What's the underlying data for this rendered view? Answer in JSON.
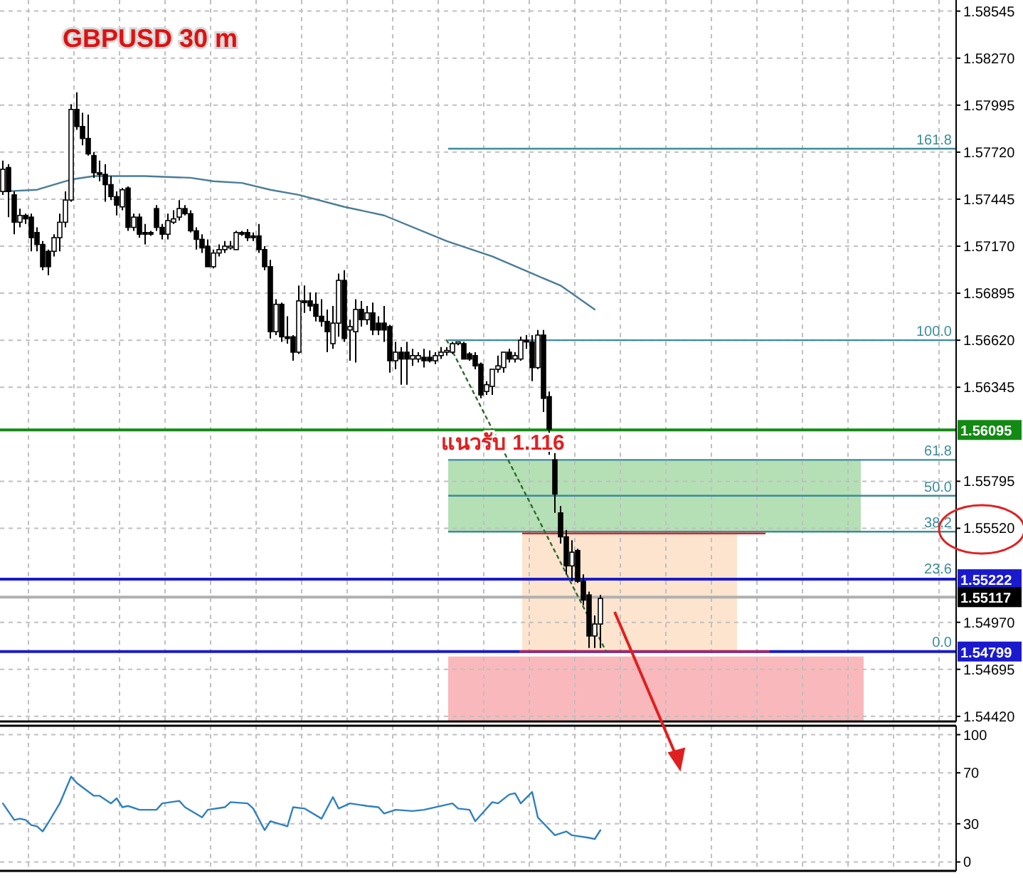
{
  "chart_data": [
    {
      "type": "candlestick",
      "title": "GBPUSD 30 m",
      "categories": [
        null,
        null,
        null,
        null,
        null,
        null,
        null,
        null,
        null,
        null,
        null,
        null,
        null,
        null,
        null,
        null,
        null,
        null,
        null,
        null,
        null,
        null,
        null,
        null,
        null,
        null,
        null,
        null,
        null,
        null,
        null,
        null,
        null,
        null,
        null,
        null,
        null,
        null,
        null,
        null,
        null,
        null,
        null,
        null,
        null,
        null,
        null,
        null,
        null,
        null,
        null,
        null,
        null,
        null,
        null,
        null,
        null,
        null,
        null,
        null,
        null,
        null,
        null,
        null,
        null,
        null,
        null,
        null,
        null,
        null,
        null,
        null,
        null,
        null,
        null,
        null,
        null,
        null,
        null,
        null,
        null,
        null,
        null,
        null,
        null,
        null,
        null,
        null,
        null,
        null,
        null,
        null,
        null,
        null,
        null,
        null,
        null,
        null,
        null,
        null,
        null,
        null,
        null,
        null,
        null,
        null,
        null,
        null,
        null,
        null,
        null,
        null,
        null,
        null,
        null,
        null,
        null,
        null,
        null,
        null,
        null,
        null,
        null,
        null,
        null,
        null,
        null,
        null,
        null,
        null,
        null,
        null,
        null,
        null,
        null,
        null,
        null,
        null,
        null,
        null,
        null,
        null,
        null,
        null,
        null,
        null,
        null,
        null,
        null,
        null,
        null,
        null,
        null,
        null,
        null,
        null,
        null,
        null,
        null,
        null,
        null,
        null,
        null,
        null,
        null,
        null,
        null,
        null
      ],
      "ohlc": [
        [
          1.5749,
          1.5767,
          1.5747,
          1.5762
        ],
        [
          1.5763,
          1.5765,
          1.5734,
          1.5749
        ],
        [
          1.5747,
          1.5749,
          1.5724,
          1.5731
        ],
        [
          1.5731,
          1.5739,
          1.5728,
          1.5735
        ],
        [
          1.5735,
          1.5736,
          1.573,
          1.5733
        ],
        [
          1.5734,
          1.5736,
          1.5714,
          1.5722
        ],
        [
          1.5725,
          1.5728,
          1.5714,
          1.5718
        ],
        [
          1.5718,
          1.572,
          1.5703,
          1.5705
        ],
        [
          1.5714,
          1.5715,
          1.57,
          1.5705
        ],
        [
          1.5714,
          1.5724,
          1.5711,
          1.5722
        ],
        [
          1.5722,
          1.5736,
          1.5714,
          1.5731
        ],
        [
          1.5731,
          1.5749,
          1.5728,
          1.5744
        ],
        [
          1.5744,
          1.58,
          1.5743,
          1.5797
        ],
        [
          1.5797,
          1.5807,
          1.5785,
          1.5787
        ],
        [
          1.5787,
          1.5795,
          1.5776,
          1.578
        ],
        [
          1.578,
          1.5794,
          1.577,
          1.5771
        ],
        [
          1.577,
          1.5772,
          1.5757,
          1.576
        ],
        [
          1.576,
          1.5767,
          1.5755,
          1.5759
        ],
        [
          1.5759,
          1.5765,
          1.5743,
          1.5753
        ],
        [
          1.5753,
          1.5758,
          1.5744,
          1.5746
        ],
        [
          1.5746,
          1.5749,
          1.5735,
          1.5741
        ],
        [
          1.574,
          1.5751,
          1.5738,
          1.575
        ],
        [
          1.5751,
          1.5752,
          1.5726,
          1.5728
        ],
        [
          1.5728,
          1.5736,
          1.5726,
          1.5734
        ],
        [
          1.5734,
          1.5736,
          1.5722,
          1.5724
        ],
        [
          1.5725,
          1.573,
          1.5718,
          1.5724
        ],
        [
          1.5725,
          1.5726,
          1.5723,
          1.5724
        ],
        [
          1.5739,
          1.5741,
          1.5726,
          1.5728
        ],
        [
          1.5728,
          1.573,
          1.5721,
          1.5724
        ],
        [
          1.5724,
          1.5736,
          1.5721,
          1.5732
        ],
        [
          1.5731,
          1.5738,
          1.573,
          1.5733
        ],
        [
          1.5734,
          1.5744,
          1.5732,
          1.5739
        ],
        [
          1.5739,
          1.5741,
          1.5735,
          1.5736
        ],
        [
          1.5736,
          1.5738,
          1.5725,
          1.5726
        ],
        [
          1.5726,
          1.5728,
          1.5715,
          1.5721
        ],
        [
          1.5721,
          1.5724,
          1.5713,
          1.5716
        ],
        [
          1.5717,
          1.5721,
          1.5705,
          1.5705
        ],
        [
          1.5705,
          1.5715,
          1.5704,
          1.5713
        ],
        [
          1.5713,
          1.5718,
          1.5711,
          1.5715
        ],
        [
          1.5715,
          1.572,
          1.5713,
          1.5717
        ],
        [
          1.5716,
          1.572,
          1.5715,
          1.5717
        ],
        [
          1.5715,
          1.5726,
          1.5715,
          1.5725
        ],
        [
          1.5725,
          1.5726,
          1.5723,
          1.5724
        ],
        [
          1.5725,
          1.5727,
          1.572,
          1.5722
        ],
        [
          1.5723,
          1.5725,
          1.572,
          1.5722
        ],
        [
          1.5723,
          1.573,
          1.5713,
          1.5715
        ],
        [
          1.5715,
          1.5717,
          1.5703,
          1.5705
        ],
        [
          1.5705,
          1.5709,
          1.5663,
          1.5667
        ],
        [
          1.5667,
          1.5686,
          1.5665,
          1.5683
        ],
        [
          1.5683,
          1.5684,
          1.5661,
          1.5664
        ],
        [
          1.5664,
          1.5676,
          1.566,
          1.5663
        ],
        [
          1.5664,
          1.5665,
          1.565,
          1.5655
        ],
        [
          1.5655,
          1.5694,
          1.5654,
          1.5685
        ],
        [
          1.5685,
          1.5694,
          1.5678,
          1.5684
        ],
        [
          1.5685,
          1.569,
          1.5679,
          1.5682
        ],
        [
          1.5683,
          1.569,
          1.5673,
          1.5676
        ],
        [
          1.5676,
          1.5686,
          1.567,
          1.5673
        ],
        [
          1.5673,
          1.568,
          1.5655,
          1.5667
        ],
        [
          1.566,
          1.5682,
          1.5657,
          1.5672
        ],
        [
          1.5672,
          1.5701,
          1.5664,
          1.5697
        ],
        [
          1.5697,
          1.5703,
          1.5661,
          1.5663
        ],
        [
          1.5668,
          1.5674,
          1.565,
          1.567
        ],
        [
          1.5667,
          1.5686,
          1.5649,
          1.568
        ],
        [
          1.568,
          1.5685,
          1.567,
          1.5674
        ],
        [
          1.5674,
          1.5682,
          1.5671,
          1.5678
        ],
        [
          1.5678,
          1.5684,
          1.5665,
          1.5668
        ],
        [
          1.5672,
          1.5676,
          1.5665,
          1.5668
        ],
        [
          1.5672,
          1.5682,
          1.5661,
          1.5668
        ],
        [
          1.567,
          1.5671,
          1.5643,
          1.565
        ],
        [
          1.565,
          1.5661,
          1.5645,
          1.5655
        ],
        [
          1.5655,
          1.5658,
          1.5636,
          1.5651
        ],
        [
          1.5655,
          1.5661,
          1.5636,
          1.5651
        ],
        [
          1.5651,
          1.5657,
          1.5647,
          1.5653
        ],
        [
          1.5651,
          1.5655,
          1.5649,
          1.5653
        ],
        [
          1.5652,
          1.5657,
          1.5646,
          1.565
        ],
        [
          1.5652,
          1.5656,
          1.5649,
          1.565
        ],
        [
          1.565,
          1.5655,
          1.5648,
          1.5653
        ],
        [
          1.5653,
          1.5658,
          1.5651,
          1.5655
        ],
        [
          1.5655,
          1.5658,
          1.5653,
          1.5656
        ],
        [
          1.5655,
          1.5661,
          1.5654,
          1.566
        ],
        [
          1.566,
          1.5661,
          1.5659,
          1.5661
        ],
        [
          1.566,
          1.5661,
          1.5651,
          1.5651
        ],
        [
          1.5654,
          1.5655,
          1.565,
          1.5651
        ],
        [
          1.5653,
          1.5655,
          1.5645,
          1.5647
        ],
        [
          1.5648,
          1.5649,
          1.5628,
          1.563
        ],
        [
          1.5632,
          1.5638,
          1.563,
          1.5636
        ],
        [
          1.5635,
          1.5645,
          1.563,
          1.5645
        ],
        [
          1.5645,
          1.5653,
          1.5643,
          1.5647
        ],
        [
          1.5646,
          1.5655,
          1.5643,
          1.5655
        ],
        [
          1.5655,
          1.5657,
          1.5649,
          1.5651
        ],
        [
          1.5651,
          1.5655,
          1.5649,
          1.5653
        ],
        [
          1.5651,
          1.5664,
          1.565,
          1.5662
        ],
        [
          1.5662,
          1.5665,
          1.5657,
          1.5661
        ],
        [
          1.5661,
          1.5665,
          1.5638,
          1.5646
        ],
        [
          1.5646,
          1.5668,
          1.5645,
          1.5665
        ],
        [
          1.5665,
          1.5668,
          1.562,
          1.5628
        ],
        [
          1.5629,
          1.5632,
          1.5595,
          1.561
        ],
        [
          1.5592,
          1.5596,
          1.5561,
          1.5572
        ],
        [
          1.5561,
          1.5565,
          1.5543,
          1.5547
        ],
        [
          1.5547,
          1.5551,
          1.5525,
          1.553
        ],
        [
          1.553,
          1.5545,
          1.5521,
          1.5538
        ],
        [
          1.5539,
          1.554,
          1.552,
          1.5521
        ],
        [
          1.5521,
          1.5525,
          1.5507,
          1.551
        ],
        [
          1.5513,
          1.5515,
          1.5482,
          1.5489
        ],
        [
          1.5489,
          1.5501,
          1.5482,
          1.5496
        ],
        [
          1.5496,
          1.5513,
          1.5482,
          1.5511
        ],
        null,
        null,
        null,
        null,
        null,
        null,
        null,
        null,
        null,
        null,
        null,
        null,
        null,
        null,
        null,
        null,
        null,
        null,
        null,
        null,
        null,
        null,
        null,
        null,
        null,
        null,
        null,
        null,
        null,
        null,
        null,
        null,
        null,
        null,
        null,
        null,
        null,
        null,
        null,
        null,
        null,
        null,
        null,
        null,
        null,
        null,
        null,
        null,
        null,
        null,
        null,
        null,
        null,
        null,
        null,
        null,
        null,
        null,
        null,
        null,
        null,
        null
      ],
      "series": [
        {
          "type": "line",
          "color": "#4a7d98",
          "values": [
            1.5749,
            null,
            null,
            null,
            null,
            null,
            1.575,
            null,
            null,
            null,
            null,
            null,
            1.5756,
            null,
            null,
            null,
            1.5758,
            null,
            null,
            null,
            null,
            null,
            null,
            null,
            null,
            1.5758,
            null,
            null,
            null,
            null,
            null,
            null,
            null,
            1.5757,
            null,
            null,
            null,
            1.5755,
            null,
            null,
            null,
            null,
            1.5754,
            null,
            null,
            null,
            null,
            1.575,
            null,
            null,
            null,
            null,
            1.5747,
            null,
            null,
            null,
            null,
            null,
            null,
            null,
            1.574,
            null,
            null,
            null,
            null,
            null,
            null,
            1.5735,
            null,
            null,
            null,
            null,
            null,
            null,
            null,
            null,
            null,
            null,
            1.572,
            null,
            null,
            null,
            null,
            null,
            null,
            null,
            1.5711,
            null,
            null,
            null,
            null,
            null,
            null,
            1.5701,
            null,
            null,
            null,
            null,
            1.5694,
            null,
            null,
            null,
            null,
            null,
            1.568,
            null,
            null,
            null,
            null,
            null,
            null,
            null,
            null,
            null,
            null,
            null,
            null,
            null,
            null,
            null,
            null,
            null,
            null,
            null,
            null,
            null,
            null,
            null,
            null,
            null,
            null,
            null,
            null,
            null,
            null,
            null,
            null,
            null,
            null,
            null,
            null,
            null,
            null,
            null,
            null,
            null,
            null,
            null,
            null,
            null,
            null,
            null,
            null,
            null,
            null,
            null,
            null,
            null,
            null,
            null,
            null,
            null,
            null,
            null,
            null,
            null,
            null,
            null
          ]
        },
        {
          "type": "line",
          "color": "#2e6b2e",
          "line_style": "dotted",
          "values": [
            null,
            null,
            null,
            null,
            null,
            null,
            null,
            null,
            null,
            null,
            null,
            null,
            null,
            null,
            null,
            null,
            null,
            null,
            null,
            null,
            null,
            null,
            null,
            null,
            null,
            null,
            null,
            null,
            null,
            null,
            null,
            null,
            null,
            null,
            null,
            null,
            null,
            null,
            null,
            null,
            null,
            null,
            null,
            null,
            null,
            null,
            null,
            null,
            null,
            null,
            null,
            null,
            null,
            null,
            null,
            null,
            null,
            null,
            null,
            null,
            null,
            null,
            null,
            null,
            null,
            null,
            null,
            null,
            null,
            null,
            null,
            null,
            null,
            null,
            null,
            null,
            null,
            null,
            1.5662,
            null,
            null,
            null,
            null,
            null,
            null,
            null,
            null,
            null,
            null,
            null,
            null,
            null,
            null,
            null,
            null,
            null,
            null,
            null,
            null,
            null,
            null,
            null,
            null,
            null,
            null,
            null,
            1.548,
            null,
            null,
            null,
            null,
            null,
            null,
            null,
            null,
            null,
            null,
            null,
            null,
            null,
            null,
            null,
            null,
            null,
            null,
            null,
            null,
            null,
            null,
            null,
            null,
            null,
            null,
            null,
            null,
            null,
            null,
            null,
            null,
            null,
            null,
            null,
            null,
            null,
            null,
            null,
            null,
            null,
            null,
            null,
            null,
            null,
            null,
            null,
            null,
            null,
            null,
            null,
            null,
            null,
            null,
            null,
            null,
            null,
            null,
            null,
            null,
            null
          ]
        }
      ],
      "ylim": [
        1.5439,
        1.5861
      ],
      "yticks": [
        1.58545,
        {
          "value": 1.5827,
          "label": "1.58270"
        },
        1.57995,
        {
          "value": 1.5772,
          "label": "1.57720"
        },
        1.57445,
        {
          "value": 1.5717,
          "label": "1.57170"
        },
        1.56895,
        {
          "value": 1.5662,
          "label": "1.56620"
        },
        1.56345,
        1.55795,
        {
          "value": 1.5552,
          "label": "1.55520"
        },
        {
          "value": 1.5497,
          "label": "1.54970"
        },
        1.54695,
        {
          "value": 1.5442,
          "label": "1.54420"
        }
      ],
      "grid": true,
      "bands": [
        {
          "axis": "y",
          "from": 1.555,
          "to": 1.5592,
          "color": "#b5dfb5"
        },
        {
          "axis": "y",
          "from": 1.548,
          "to": 1.5549,
          "color": "#fde4cf"
        },
        {
          "axis": "y",
          "from": 1.5439,
          "to": 1.5477,
          "color": "#f9b8bb"
        }
      ],
      "ref_lines": [
        {
          "axis": "y",
          "value": 1.5774,
          "color": "#3d8c99"
        },
        {
          "axis": "y",
          "value": 1.5662,
          "color": "#3d8c99"
        },
        {
          "axis": "y",
          "value": 1.5592,
          "color": "#3d8c99"
        },
        {
          "axis": "y",
          "value": 1.5571,
          "color": "#3d8c99"
        },
        {
          "axis": "y",
          "value": 1.555,
          "color": "#3d8c99"
        },
        {
          "axis": "y",
          "value": 1.56095,
          "label": "1.56095",
          "color": "#138a13"
        },
        {
          "axis": "y",
          "value": 1.55222,
          "label": "1.55222",
          "color": "#1a1acc"
        },
        {
          "axis": "y",
          "value": 1.54799,
          "label": "1.54799",
          "color": "#1a1acc"
        },
        {
          "axis": "y",
          "value": 1.55117,
          "label": "1.55117",
          "color": "#b0b0b0"
        },
        {
          "axis": "y",
          "value": 1.5549,
          "color": "#e02020"
        },
        {
          "axis": "y",
          "value": 1.548,
          "color": "#e02020"
        }
      ],
      "annotations": [
        "แนวรับ 1.116",
        {
          "text": "161.8",
          "y": 1.5774
        },
        {
          "text": "100.0",
          "y": 1.5662
        },
        {
          "text": "61.8",
          "y": 1.5592
        },
        {
          "text": "50.0",
          "y": 1.5571
        },
        {
          "text": "38.2",
          "y": 1.555
        },
        {
          "text": "23.6",
          "y": 1.5523
        },
        {
          "text": "0.0",
          "y": 1.548
        }
      ]
    },
    {
      "type": "line",
      "categories": [
        null,
        null,
        null,
        null,
        null,
        null,
        null,
        null,
        null,
        null,
        null,
        null,
        null,
        null,
        null,
        null,
        null,
        null,
        null,
        null,
        null,
        null,
        null,
        null,
        null,
        null,
        null,
        null,
        null,
        null,
        null,
        null,
        null,
        null,
        null,
        null,
        null,
        null,
        null,
        null,
        null,
        null,
        null,
        null,
        null,
        null,
        null,
        null,
        null,
        null,
        null,
        null,
        null,
        null,
        null,
        null,
        null,
        null,
        null,
        null,
        null,
        null,
        null,
        null,
        null,
        null,
        null,
        null,
        null,
        null,
        null,
        null,
        null,
        null,
        null,
        null,
        null,
        null,
        null,
        null,
        null,
        null,
        null,
        null,
        null,
        null,
        null,
        null,
        null,
        null,
        null,
        null,
        null,
        null,
        null,
        null,
        null,
        null,
        null,
        null,
        null,
        null,
        null,
        null,
        null,
        null,
        null,
        null,
        null,
        null,
        null,
        null,
        null,
        null,
        null,
        null,
        null,
        null,
        null,
        null,
        null,
        null,
        null,
        null,
        null,
        null,
        null,
        null,
        null,
        null,
        null,
        null,
        null,
        null,
        null,
        null,
        null,
        null,
        null,
        null,
        null,
        null,
        null,
        null,
        null,
        null,
        null,
        null,
        null,
        null,
        null,
        null,
        null,
        null,
        null,
        null,
        null,
        null,
        null,
        null,
        null,
        null,
        null,
        null,
        null,
        null,
        null,
        null
      ],
      "series": [
        {
          "color": "#2f80c0",
          "values": [
            46,
            null,
            33,
            34,
            33,
            29,
            28,
            24,
            31,
            null,
            46,
            null,
            67,
            62,
            null,
            null,
            52,
            52,
            null,
            46,
            50,
            43,
            44,
            null,
            41,
            null,
            null,
            41,
            46,
            null,
            null,
            48,
            43,
            null,
            null,
            35,
            41,
            null,
            null,
            43,
            47,
            null,
            null,
            46,
            42,
            null,
            25,
            32,
            null,
            null,
            28,
            43,
            null,
            42,
            null,
            null,
            34,
            null,
            51,
            42,
            null,
            46,
            null,
            null,
            44,
            null,
            43,
            38,
            null,
            41,
            null,
            null,
            40,
            null,
            41,
            null,
            null,
            null,
            null,
            46,
            42,
            null,
            41,
            32,
            37,
            null,
            47,
            46,
            null,
            53,
            54,
            46,
            null,
            55,
            35,
            null,
            null,
            21,
            null,
            24,
            21,
            null,
            null,
            19,
            18,
            25,
            null,
            null,
            null,
            null,
            null,
            null,
            null,
            null,
            null,
            null,
            null,
            null,
            null,
            null,
            null,
            null,
            null,
            null,
            null,
            null,
            null,
            null,
            null,
            null,
            null,
            null,
            null,
            null,
            null,
            null,
            null,
            null,
            null,
            null,
            null,
            null,
            null,
            null,
            null,
            null,
            null,
            null,
            null,
            null,
            null,
            null,
            null,
            null,
            null,
            null,
            null,
            null,
            null,
            null,
            null,
            null,
            null,
            null,
            null,
            null,
            null,
            null
          ]
        }
      ],
      "ylim": [
        -7,
        107
      ],
      "yticks": [
        0,
        30,
        70,
        100
      ],
      "grid": true
    }
  ]
}
